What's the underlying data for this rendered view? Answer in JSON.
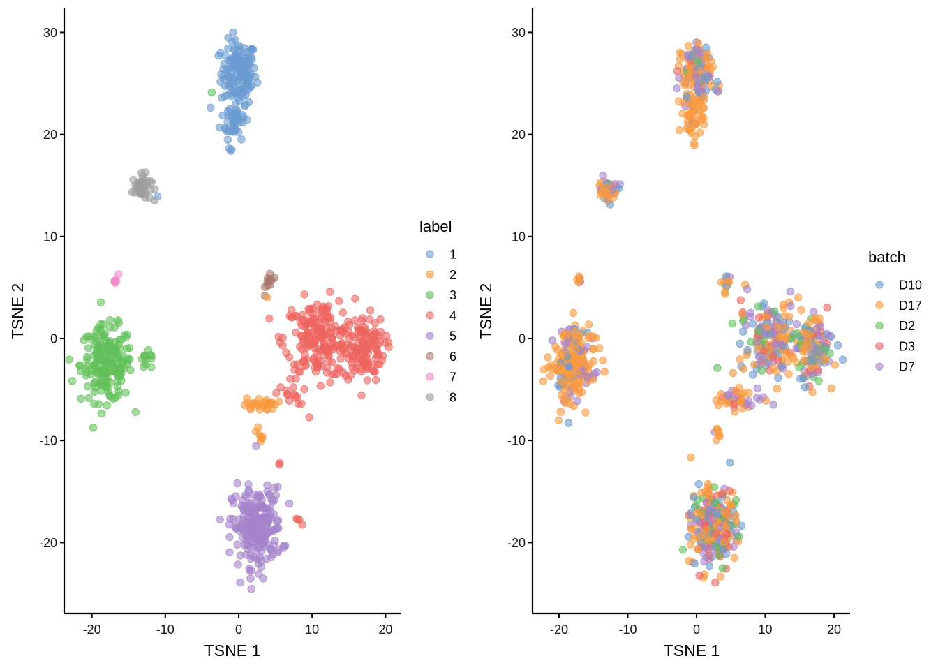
{
  "chart_data": [
    {
      "type": "scatter",
      "title": "",
      "xlabel": "TSNE 1",
      "ylabel": "TSNE 2",
      "xlim": [
        -23.5,
        22.5
      ],
      "ylim": [
        -26.5,
        32.5
      ],
      "xticks": [
        -20,
        -10,
        0,
        10,
        20
      ],
      "yticks": [
        -20,
        -10,
        0,
        10,
        20,
        30
      ],
      "grid": false,
      "legend": {
        "title": "label",
        "position": "right"
      },
      "color_by": "label",
      "series": [
        {
          "name": "1",
          "color": "#6A9BD1"
        },
        {
          "name": "2",
          "color": "#F99A3F"
        },
        {
          "name": "3",
          "color": "#62BF5A"
        },
        {
          "name": "4",
          "color": "#EE6660"
        },
        {
          "name": "5",
          "color": "#A583CB"
        },
        {
          "name": "6",
          "color": "#A8776B"
        },
        {
          "name": "7",
          "color": "#EE8CC8"
        },
        {
          "name": "8",
          "color": "#9E9E9E"
        }
      ],
      "clusters": [
        {
          "series": "1",
          "center": [
            0.0,
            26.0
          ],
          "spread": [
            1.5,
            2.0
          ],
          "count": 140
        },
        {
          "series": "1",
          "center": [
            -0.5,
            21.5
          ],
          "spread": [
            1.2,
            1.2
          ],
          "count": 45
        },
        {
          "series": "1",
          "center": [
            -1.5,
            18.6
          ],
          "spread": [
            0.3,
            0.2
          ],
          "count": 3
        },
        {
          "series": "1",
          "center": [
            -11.0,
            13.9
          ],
          "spread": [
            0.1,
            0.1
          ],
          "count": 1
        },
        {
          "series": "3",
          "center": [
            -3.6,
            24.3
          ],
          "spread": [
            0.1,
            0.1
          ],
          "count": 1
        },
        {
          "series": "8",
          "center": [
            -13.2,
            14.8
          ],
          "spread": [
            0.8,
            0.8
          ],
          "count": 45
        },
        {
          "series": "7",
          "center": [
            -16.7,
            5.8
          ],
          "spread": [
            0.2,
            0.35
          ],
          "count": 6
        },
        {
          "series": "3",
          "center": [
            -18.0,
            -2.5
          ],
          "spread": [
            2.2,
            2.3
          ],
          "count": 190
        },
        {
          "series": "3",
          "center": [
            -12.5,
            -2.3
          ],
          "spread": [
            0.8,
            0.6
          ],
          "count": 12
        },
        {
          "series": "6",
          "center": [
            4.2,
            5.6
          ],
          "spread": [
            0.35,
            0.7
          ],
          "count": 12
        },
        {
          "series": "2",
          "center": [
            4.0,
            4.1
          ],
          "spread": [
            0.1,
            0.1
          ],
          "count": 1
        },
        {
          "series": "4",
          "center": [
            11.0,
            0.0
          ],
          "spread": [
            3.0,
            2.4
          ],
          "count": 200
        },
        {
          "series": "4",
          "center": [
            17.0,
            -1.0
          ],
          "spread": [
            1.8,
            2.0
          ],
          "count": 120
        },
        {
          "series": "4",
          "center": [
            7.0,
            -5.5
          ],
          "spread": [
            1.3,
            0.6
          ],
          "count": 14
        },
        {
          "series": "2",
          "center": [
            3.0,
            -6.5
          ],
          "spread": [
            1.4,
            0.4
          ],
          "count": 28
        },
        {
          "series": "2",
          "center": [
            2.8,
            -9.3
          ],
          "spread": [
            0.3,
            0.6
          ],
          "count": 7
        },
        {
          "series": "5",
          "center": [
            2.5,
            -10.6
          ],
          "spread": [
            0.1,
            0.1
          ],
          "count": 1
        },
        {
          "series": "5",
          "center": [
            2.5,
            -18.5
          ],
          "spread": [
            2.1,
            2.4
          ],
          "count": 230
        },
        {
          "series": "4",
          "center": [
            5.5,
            -12.3
          ],
          "spread": [
            0.2,
            0.1
          ],
          "count": 2
        },
        {
          "series": "4",
          "center": [
            8.3,
            -18.0
          ],
          "spread": [
            0.4,
            0.2
          ],
          "count": 4
        }
      ]
    },
    {
      "type": "scatter",
      "title": "",
      "xlabel": "TSNE 1",
      "ylabel": "TSNE 2",
      "xlim": [
        -24,
        22.5
      ],
      "ylim": [
        -26.5,
        32.5
      ],
      "xticks": [
        -20,
        -10,
        0,
        10,
        20
      ],
      "yticks": [
        -20,
        -10,
        0,
        10,
        20,
        30
      ],
      "grid": false,
      "legend": {
        "title": "batch",
        "position": "right"
      },
      "color_by": "batch",
      "series": [
        {
          "name": "D10",
          "color": "#6A9BD1"
        },
        {
          "name": "D17",
          "color": "#F99A3F"
        },
        {
          "name": "D2",
          "color": "#62BF5A"
        },
        {
          "name": "D3",
          "color": "#EE6660"
        },
        {
          "name": "D7",
          "color": "#A583CB"
        }
      ],
      "clusters": [
        {
          "mix": {
            "D10": 0.15,
            "D17": 0.5,
            "D2": 0.05,
            "D3": 0.03,
            "D7": 0.27
          },
          "center": [
            0.0,
            26.0
          ],
          "spread": [
            1.5,
            2.0
          ],
          "count": 140
        },
        {
          "mix": {
            "D17": 0.9,
            "D7": 0.1
          },
          "center": [
            -0.5,
            21.5
          ],
          "spread": [
            1.2,
            1.2
          ],
          "count": 45
        },
        {
          "mix": {
            "D10": 0.2,
            "D17": 0.5,
            "D7": 0.3
          },
          "center": [
            -13.0,
            14.5
          ],
          "spread": [
            0.8,
            0.8
          ],
          "count": 45
        },
        {
          "mix": {
            "D10": 0.3,
            "D17": 0.5,
            "D7": 0.2
          },
          "center": [
            -17.0,
            5.8
          ],
          "spread": [
            0.2,
            0.35
          ],
          "count": 6
        },
        {
          "mix": {
            "D10": 0.1,
            "D17": 0.75,
            "D7": 0.15
          },
          "center": [
            -18.0,
            -2.5
          ],
          "spread": [
            2.2,
            2.3
          ],
          "count": 200
        },
        {
          "mix": {
            "D10": 0.25,
            "D17": 0.6,
            "D7": 0.15
          },
          "center": [
            4.3,
            5.6
          ],
          "spread": [
            0.35,
            0.7
          ],
          "count": 12
        },
        {
          "mix": {
            "D10": 0.2,
            "D17": 0.35,
            "D2": 0.15,
            "D3": 0.07,
            "D7": 0.23
          },
          "center": [
            11.0,
            0.0
          ],
          "spread": [
            3.0,
            2.4
          ],
          "count": 200
        },
        {
          "mix": {
            "D10": 0.22,
            "D17": 0.33,
            "D2": 0.15,
            "D3": 0.08,
            "D7": 0.22
          },
          "center": [
            17.0,
            -1.0
          ],
          "spread": [
            1.8,
            2.0
          ],
          "count": 120
        },
        {
          "mix": {
            "D17": 0.5,
            "D3": 0.3,
            "D7": 0.2
          },
          "center": [
            5.5,
            -6.0
          ],
          "spread": [
            2.0,
            0.6
          ],
          "count": 42
        },
        {
          "mix": {
            "D17": 0.9,
            "D7": 0.1
          },
          "center": [
            2.8,
            -9.3
          ],
          "spread": [
            0.3,
            0.6
          ],
          "count": 7
        },
        {
          "mix": {
            "D10": 0.2,
            "D17": 0.38,
            "D2": 0.12,
            "D3": 0.2,
            "D7": 0.1
          },
          "center": [
            2.5,
            -18.5
          ],
          "spread": [
            2.1,
            2.4
          ],
          "count": 236
        }
      ]
    }
  ]
}
